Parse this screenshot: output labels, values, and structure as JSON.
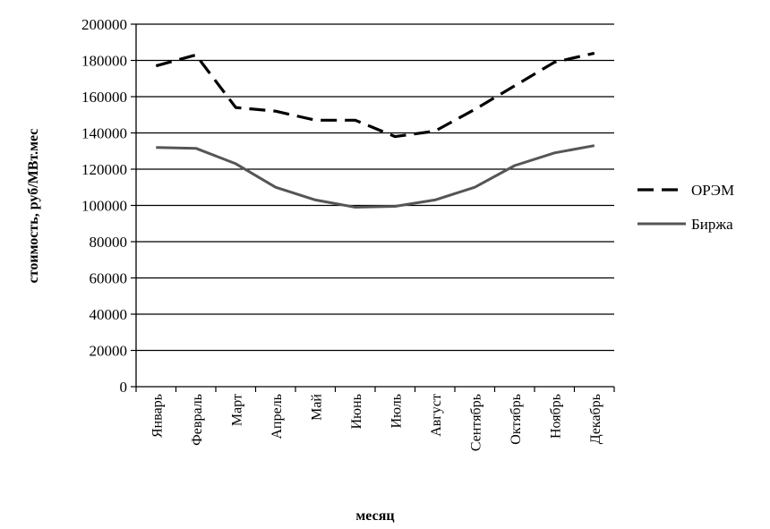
{
  "chart_data": {
    "type": "line",
    "title": "",
    "xlabel": "месяц",
    "ylabel": "стоимость, руб/МВт.мес",
    "ylim": [
      0,
      200000
    ],
    "ytick_step": 20000,
    "grid": true,
    "legend_position": "right",
    "categories": [
      "Январь",
      "Февраль",
      "Март",
      "Апрель",
      "Май",
      "Июнь",
      "Июль",
      "Август",
      "Сентябрь",
      "Октябрь",
      "Ноябрь",
      "Декабрь"
    ],
    "series": [
      {
        "name": "ОРЭМ",
        "style": "dashed",
        "color": "#000000",
        "values": [
          177000,
          183000,
          154000,
          152000,
          147000,
          147000,
          138000,
          141000,
          153000,
          166000,
          179000,
          184000
        ]
      },
      {
        "name": "Биржа",
        "style": "solid",
        "color": "#555555",
        "values": [
          132000,
          131500,
          123000,
          110000,
          103000,
          99000,
          99500,
          103000,
          110000,
          122000,
          129000,
          133000
        ]
      }
    ]
  }
}
